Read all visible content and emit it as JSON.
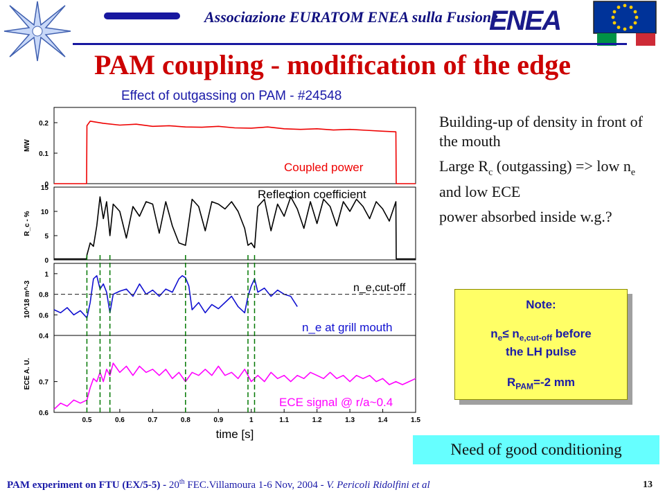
{
  "header": {
    "association": "Associazione EURATOM ENEA sulla Fusione",
    "logo_text": "ENEA",
    "slide_title": "PAM coupling - modification of the edge"
  },
  "bullets": [
    {
      "text": "Building-up of density in front of the mouth"
    },
    {
      "pre": "Large R",
      "sub": "c",
      "post": " (outgassing) => low n",
      "sub2": "e",
      "post2": " and low ECE"
    },
    {
      "text": "power absorbed inside w.g.?"
    }
  ],
  "note": {
    "heading": "Note:",
    "l1_a": "n",
    "l1_sub_a": "e",
    "l1_b": "≤ n",
    "l1_sub_b": "e,cut-off",
    "l1_c": " before",
    "l2": "the LH pulse",
    "l3_a": "R",
    "l3_sub": "PAM",
    "l3_b": "=-2 mm"
  },
  "conclusion": "Need of good conditioning",
  "footer": {
    "bold_part": "PAM experiment on FTU (EX/5-5) - ",
    "conf_pre": "20",
    "conf_sup": "th",
    "conf_post": " FEC.Villamoura 1-6 Nov, 2004 - ",
    "authors": "V. Pericoli Ridolfini et al",
    "page": "13"
  },
  "colors": {
    "title": "#cc0000",
    "header_blue": "#1818a0",
    "power": "#ee0000",
    "reflection": "#000000",
    "density": "#1010d0",
    "ece": "#ff00ff",
    "markers": "#007700",
    "note_bg": "#ffff66",
    "conclusion_bg": "#66ffff"
  },
  "chart_data": {
    "type": "line",
    "title": "Effect of outgassing on PAM - #24548",
    "xlabel": "time [s]",
    "xlim": [
      0.4,
      1.5
    ],
    "x_ticks": [
      "0.5",
      "0.6",
      "0.7",
      "0.8",
      "0.9",
      "1",
      "1.1",
      "1.2",
      "1.3",
      "1.4",
      "1.5"
    ],
    "marker_times": [
      0.5,
      0.54,
      0.57,
      0.8,
      0.99,
      1.01
    ],
    "panels": [
      {
        "ylabel": "MW",
        "ylim": [
          0,
          0.25
        ],
        "y_ticks": [
          "0",
          "0.1",
          "0.2"
        ],
        "label": "Coupled power",
        "series": {
          "x": [
            0.4,
            0.499,
            0.5,
            0.51,
            0.55,
            0.6,
            0.65,
            0.7,
            0.75,
            0.8,
            0.85,
            0.9,
            0.95,
            1.0,
            1.05,
            1.1,
            1.15,
            1.2,
            1.25,
            1.3,
            1.35,
            1.4,
            1.44,
            1.441,
            1.5
          ],
          "y": [
            0.0,
            0.0,
            0.19,
            0.205,
            0.198,
            0.192,
            0.195,
            0.188,
            0.19,
            0.186,
            0.185,
            0.188,
            0.183,
            0.182,
            0.186,
            0.18,
            0.178,
            0.18,
            0.176,
            0.178,
            0.175,
            0.172,
            0.17,
            0.0,
            0.0
          ]
        }
      },
      {
        "ylabel": "R_c - %",
        "ylim": [
          0,
          15
        ],
        "y_ticks": [
          "0",
          "5",
          "10",
          "15"
        ],
        "label": "Reflection coefficient",
        "series": {
          "x": [
            0.4,
            0.499,
            0.5,
            0.51,
            0.52,
            0.53,
            0.54,
            0.55,
            0.56,
            0.57,
            0.58,
            0.6,
            0.62,
            0.64,
            0.66,
            0.68,
            0.7,
            0.72,
            0.74,
            0.76,
            0.78,
            0.8,
            0.82,
            0.84,
            0.86,
            0.88,
            0.9,
            0.92,
            0.94,
            0.96,
            0.98,
            0.99,
            1.0,
            1.01,
            1.02,
            1.04,
            1.06,
            1.08,
            1.1,
            1.12,
            1.14,
            1.16,
            1.18,
            1.2,
            1.22,
            1.24,
            1.26,
            1.28,
            1.3,
            1.32,
            1.34,
            1.36,
            1.38,
            1.4,
            1.42,
            1.44,
            1.441,
            1.5
          ],
          "y": [
            0.2,
            0.2,
            1.0,
            3.5,
            2.8,
            7.0,
            13.0,
            8.5,
            12.0,
            5.0,
            11.5,
            10.0,
            4.5,
            11.0,
            9.0,
            12.0,
            11.5,
            5.5,
            12.0,
            7.0,
            3.5,
            3.0,
            12.5,
            11.0,
            6.0,
            12.0,
            11.5,
            10.5,
            12.0,
            10.0,
            6.5,
            3.0,
            3.5,
            2.5,
            11.0,
            12.5,
            6.0,
            11.5,
            9.0,
            13.0,
            10.5,
            6.5,
            12.0,
            7.5,
            12.5,
            11.0,
            7.0,
            12.0,
            10.0,
            12.5,
            11.0,
            8.5,
            12.0,
            10.5,
            8.0,
            12.0,
            0.2,
            0.2
          ]
        }
      },
      {
        "ylabel": "10^18 m^-3",
        "ylim": [
          0.4,
          1.1
        ],
        "y_ticks": [
          "0.4",
          "0.6",
          "0.8",
          "1"
        ],
        "label": "n_e at grill mouth",
        "cutoff_label": "n_e,cut-off",
        "cutoff_value": 0.8,
        "series": {
          "x": [
            0.4,
            0.42,
            0.44,
            0.46,
            0.48,
            0.5,
            0.51,
            0.52,
            0.53,
            0.54,
            0.55,
            0.56,
            0.57,
            0.58,
            0.6,
            0.62,
            0.64,
            0.66,
            0.68,
            0.7,
            0.72,
            0.74,
            0.76,
            0.78,
            0.79,
            0.8,
            0.81,
            0.82,
            0.84,
            0.86,
            0.88,
            0.9,
            0.92,
            0.94,
            0.96,
            0.98,
            0.99,
            1.0,
            1.01,
            1.02,
            1.04,
            1.06,
            1.08,
            1.1,
            1.12,
            1.14
          ],
          "y": [
            0.65,
            0.62,
            0.67,
            0.6,
            0.64,
            0.57,
            0.72,
            0.95,
            0.98,
            0.85,
            0.9,
            0.82,
            0.62,
            0.8,
            0.83,
            0.85,
            0.78,
            0.9,
            0.8,
            0.84,
            0.78,
            0.85,
            0.82,
            0.95,
            0.98,
            0.96,
            0.88,
            0.65,
            0.72,
            0.62,
            0.7,
            0.66,
            0.72,
            0.78,
            0.68,
            0.62,
            0.78,
            0.88,
            0.95,
            0.82,
            0.86,
            0.78,
            0.84,
            0.8,
            0.78,
            0.68
          ]
        }
      },
      {
        "ylabel": "ECE A. U.",
        "ylim": [
          0.6,
          0.85
        ],
        "y_ticks": [
          "0.6",
          "0.7"
        ],
        "label": "ECE signal @ r/a~0.4",
        "series": {
          "x": [
            0.4,
            0.42,
            0.44,
            0.46,
            0.48,
            0.5,
            0.51,
            0.52,
            0.53,
            0.54,
            0.55,
            0.56,
            0.57,
            0.58,
            0.6,
            0.62,
            0.64,
            0.66,
            0.68,
            0.7,
            0.72,
            0.74,
            0.76,
            0.78,
            0.8,
            0.82,
            0.84,
            0.86,
            0.88,
            0.9,
            0.92,
            0.94,
            0.96,
            0.98,
            1.0,
            1.02,
            1.04,
            1.06,
            1.08,
            1.1,
            1.12,
            1.14,
            1.16,
            1.18,
            1.2,
            1.22,
            1.24,
            1.26,
            1.28,
            1.3,
            1.32,
            1.34,
            1.36,
            1.38,
            1.4,
            1.42,
            1.44,
            1.46,
            1.48,
            1.5
          ],
          "y": [
            0.61,
            0.63,
            0.62,
            0.64,
            0.63,
            0.64,
            0.68,
            0.71,
            0.7,
            0.73,
            0.7,
            0.74,
            0.72,
            0.76,
            0.73,
            0.75,
            0.72,
            0.75,
            0.73,
            0.74,
            0.72,
            0.74,
            0.71,
            0.73,
            0.7,
            0.73,
            0.72,
            0.74,
            0.72,
            0.75,
            0.72,
            0.73,
            0.71,
            0.74,
            0.7,
            0.72,
            0.7,
            0.73,
            0.71,
            0.72,
            0.7,
            0.72,
            0.71,
            0.73,
            0.72,
            0.71,
            0.73,
            0.71,
            0.72,
            0.7,
            0.72,
            0.71,
            0.72,
            0.7,
            0.71,
            0.69,
            0.7,
            0.69,
            0.7,
            0.71
          ]
        }
      }
    ]
  }
}
